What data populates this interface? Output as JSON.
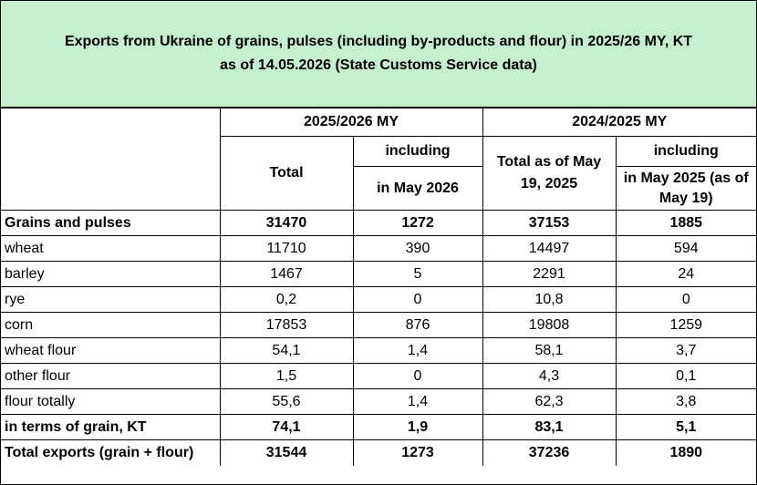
{
  "title": {
    "line1": "Exports from Ukraine of grains, pulses (including by-products and flour) in 2025/26 MY, KT",
    "line2": "as of 14.05.2026 (State Customs Service data)"
  },
  "header": {
    "my_2025_26": "2025/2026 MY",
    "my_2024_25": "2024/2025 MY",
    "total": "Total",
    "including_a": "including",
    "in_may_2026": "in May 2026",
    "total_as_of": "Total as of May 19, 2025",
    "including_b": "including",
    "in_may_2025": "in May 2025 (as of May 19)"
  },
  "rows": [
    {
      "label": "Grains and pulses",
      "v1": "31470",
      "v2": "1272",
      "v3": "37153",
      "v4": "1885"
    },
    {
      "label": "wheat",
      "v1": "11710",
      "v2": "390",
      "v3": "14497",
      "v4": "594"
    },
    {
      "label": "barley",
      "v1": "1467",
      "v2": "5",
      "v3": "2291",
      "v4": "24"
    },
    {
      "label": "rye",
      "v1": "0,2",
      "v2": "0",
      "v3": "10,8",
      "v4": "0"
    },
    {
      "label": "corn",
      "v1": "17853",
      "v2": "876",
      "v3": "19808",
      "v4": "1259"
    },
    {
      "label": "wheat flour",
      "v1": "54,1",
      "v2": "1,4",
      "v3": "58,1",
      "v4": "3,7"
    },
    {
      "label": "other flour",
      "v1": "1,5",
      "v2": "0",
      "v3": "4,3",
      "v4": "0,1"
    },
    {
      "label": "flour totally",
      "v1": "55,6",
      "v2": "1,4",
      "v3": "62,3",
      "v4": "3,8"
    },
    {
      "label": "in terms of grain, KT",
      "v1": "74,1",
      "v2": "1,9",
      "v3": "83,1",
      "v4": "5,1"
    },
    {
      "label": "Total exports (grain + flour)",
      "v1": "31544",
      "v2": "1273",
      "v3": "37236",
      "v4": "1890"
    }
  ],
  "colors": {
    "title_background": "#c6efce"
  }
}
